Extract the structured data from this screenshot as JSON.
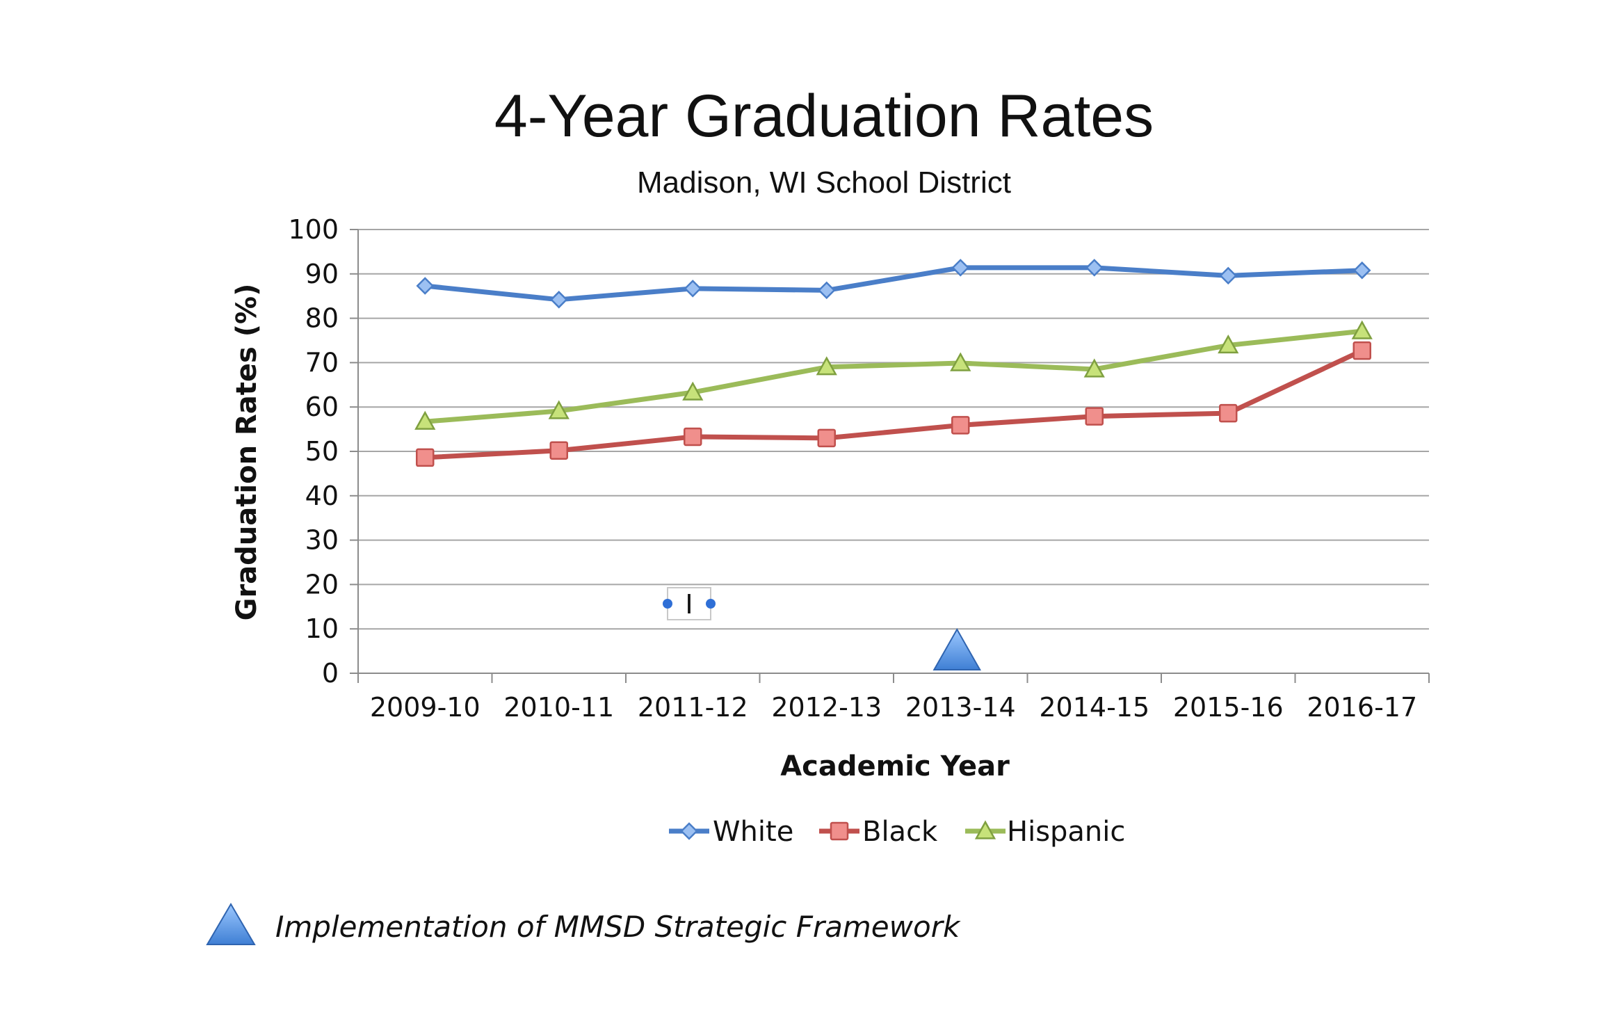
{
  "chart_data": {
    "type": "line",
    "title": "4-Year Graduation Rates",
    "subtitle": "Madison, WI School District",
    "xlabel": "Academic Year",
    "ylabel": "Graduation Rates (%)",
    "ylim": [
      0,
      100
    ],
    "yticks": [
      "0",
      "10",
      "20",
      "30",
      "40",
      "50",
      "60",
      "70",
      "80",
      "90",
      "100"
    ],
    "categories": [
      "2009-10",
      "2010-11",
      "2011-12",
      "2012-13",
      "2013-14",
      "2014-15",
      "2015-16",
      "2016-17"
    ],
    "grid": true,
    "legend_position": "bottom",
    "series": [
      {
        "name": "White",
        "color": "#4a7ec8",
        "marker": "diamond",
        "values": [
          87.3,
          84.2,
          86.7,
          86.3,
          91.4,
          91.4,
          89.6,
          90.8
        ]
      },
      {
        "name": "Black",
        "color": "#c0504d",
        "marker": "square",
        "values": [
          48.6,
          50.2,
          53.3,
          53.0,
          55.9,
          57.9,
          58.6,
          72.7
        ]
      },
      {
        "name": "Hispanic",
        "color": "#9bbb59",
        "marker": "triangle",
        "values": [
          56.7,
          59.1,
          63.3,
          69.0,
          69.9,
          68.5,
          73.9,
          77.1
        ]
      }
    ],
    "annotations": [
      {
        "marker": "triangle",
        "color": "#4f8fe0",
        "category": "2013-14",
        "text": "Implementation of MMSD Strategic Framework"
      }
    ],
    "cursor_box_text": "I"
  }
}
